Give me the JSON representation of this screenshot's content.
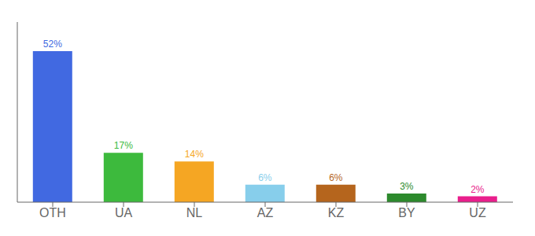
{
  "chart_data": {
    "type": "bar",
    "categories": [
      "OTH",
      "UA",
      "NL",
      "AZ",
      "KZ",
      "BY",
      "UZ"
    ],
    "values": [
      52,
      17,
      14,
      6,
      6,
      3,
      2
    ],
    "value_labels": [
      "52%",
      "17%",
      "14%",
      "6%",
      "6%",
      "3%",
      "2%"
    ],
    "colors": [
      "#4169e1",
      "#3dba3d",
      "#f5a623",
      "#87ceeb",
      "#b5651d",
      "#2d8a2d",
      "#e91e8c"
    ],
    "ylim": [
      0,
      62
    ],
    "data_labels": true,
    "tick_labels": "x",
    "grid": false
  }
}
